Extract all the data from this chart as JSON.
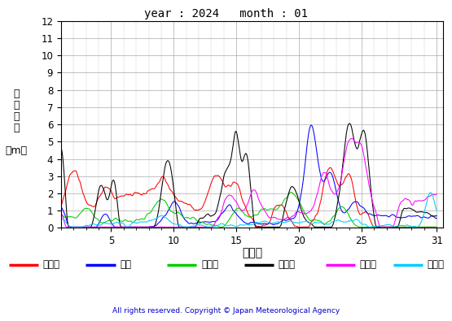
{
  "title": "year : 2024   month : 01",
  "xlabel": "（日）",
  "ylabel_lines": [
    "有",
    "義",
    "波",
    "高",
    "",
    "（m）"
  ],
  "xlim": [
    1,
    31.5
  ],
  "ylim": [
    0,
    12
  ],
  "yticks": [
    0,
    1,
    2,
    3,
    4,
    5,
    6,
    7,
    8,
    9,
    10,
    11,
    12
  ],
  "xticks": [
    5,
    10,
    15,
    20,
    25,
    31
  ],
  "series_colors": [
    "#ff0000",
    "#0000ff",
    "#00cc00",
    "#000000",
    "#ff00ff",
    "#00ccff"
  ],
  "series_names": [
    "上ノ国",
    "唐桑",
    "石廈崎",
    "経ヶ尬",
    "生月島",
    "屋久島"
  ],
  "copyright": "All rights reserved. Copyright © Japan Meteorological Agency",
  "n_points": 744,
  "background_color": "#ffffff"
}
